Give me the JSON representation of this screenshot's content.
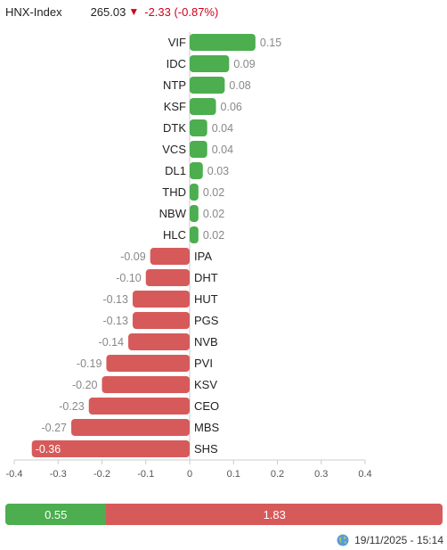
{
  "header": {
    "index_name": "HNX-Index",
    "index_value": "265.03",
    "change_arrow": "▼",
    "change_text": "-2.33 (-0.87%)",
    "change_color": "#d0021b"
  },
  "chart_data": {
    "type": "bar",
    "orientation": "horizontal",
    "title": "",
    "xlabel": "",
    "ylabel": "",
    "xlim": [
      -0.4,
      0.4
    ],
    "x_ticks": [
      "-0.4",
      "-0.3",
      "-0.2",
      "-0.1",
      "0",
      "0.1",
      "0.2",
      "0.3",
      "0.4"
    ],
    "x_tick_values": [
      -0.4,
      -0.3,
      -0.2,
      -0.1,
      0,
      0.1,
      0.2,
      0.3,
      0.4
    ],
    "positive_color": "#4cae4f",
    "negative_color": "#d75a5a",
    "categories": [
      "VIF",
      "IDC",
      "NTP",
      "KSF",
      "DTK",
      "VCS",
      "DL1",
      "THD",
      "NBW",
      "HLC",
      "IPA",
      "DHT",
      "HUT",
      "PGS",
      "NVB",
      "PVI",
      "KSV",
      "CEO",
      "MBS",
      "SHS"
    ],
    "values": [
      0.15,
      0.09,
      0.08,
      0.06,
      0.04,
      0.04,
      0.03,
      0.02,
      0.02,
      0.02,
      -0.09,
      -0.1,
      -0.13,
      -0.13,
      -0.14,
      -0.19,
      -0.2,
      -0.23,
      -0.27,
      -0.36
    ],
    "labels": [
      "0.15",
      "0.09",
      "0.08",
      "0.06",
      "0.04",
      "0.04",
      "0.03",
      "0.02",
      "0.02",
      "0.02",
      "-0.09",
      "-0.10",
      "-0.13",
      "-0.13",
      "-0.14",
      "-0.19",
      "-0.20",
      "-0.23",
      "-0.27",
      "-0.36"
    ]
  },
  "breadth": {
    "advance_label": "0.55",
    "decline_label": "1.83",
    "advance_value": 0.55,
    "decline_value": 1.83
  },
  "footer": {
    "icon": "globe-icon",
    "timestamp": "19/11/2025 - 15:14"
  }
}
